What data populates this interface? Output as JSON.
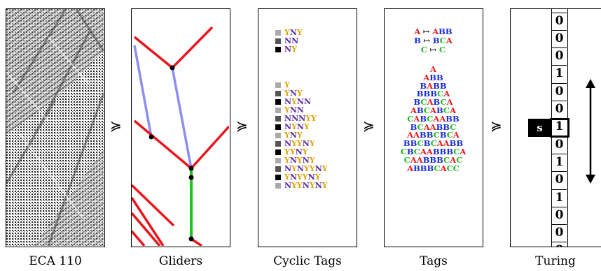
{
  "captions": {
    "eca": "ECA 110",
    "gliders": "Gliders",
    "cyclic": "Cyclic Tags",
    "tags": "Tags",
    "turing": "Turing"
  },
  "succ_symbol": "≽",
  "cyclic_tags": {
    "rules": [
      {
        "shade": "#aaaaaa",
        "tokens": [
          "Y",
          "N",
          "Y"
        ]
      },
      {
        "shade": "#555555",
        "tokens": [
          "N",
          "N"
        ]
      },
      {
        "shade": "#000000",
        "tokens": [
          "N",
          "Y"
        ]
      }
    ],
    "trace": [
      {
        "shade": "#aaaaaa",
        "word": "Y"
      },
      {
        "shade": "#555555",
        "word": "YNY"
      },
      {
        "shade": "#000000",
        "word": "NYNN"
      },
      {
        "shade": "#aaaaaa",
        "word": "YNN"
      },
      {
        "shade": "#555555",
        "word": "NNNYY"
      },
      {
        "shade": "#000000",
        "word": "NYNY"
      },
      {
        "shade": "#aaaaaa",
        "word": "YNY"
      },
      {
        "shade": "#555555",
        "word": "NYYNY"
      },
      {
        "shade": "#000000",
        "word": "YYNY"
      },
      {
        "shade": "#aaaaaa",
        "word": "YNYNY"
      },
      {
        "shade": "#555555",
        "word": "NYNYYNY"
      },
      {
        "shade": "#000000",
        "word": "YNYYNY"
      },
      {
        "shade": "#aaaaaa",
        "word": "NYYNYNY"
      }
    ]
  },
  "tags": {
    "arrow": "↦",
    "rules": [
      {
        "lhs": "A",
        "rhs": "ABB"
      },
      {
        "lhs": "B",
        "rhs": "BCA"
      },
      {
        "lhs": "C",
        "rhs": "C"
      }
    ],
    "trace": [
      "A",
      "ABB",
      "BABB",
      "BBBCA",
      "BCABCA",
      "ABCABCA",
      "CABCAABB",
      "BCAABBC",
      "AABBCBCA",
      "BBCBCAABB",
      "CBCAABBBCA",
      "CAABBBCAC",
      "ABBBCACC"
    ]
  },
  "turing": {
    "head_label": "s",
    "cells": [
      "0",
      "0",
      "0",
      "1",
      "0",
      "0",
      "1",
      "0",
      "1",
      "0",
      "1",
      "0",
      "0"
    ],
    "head_index": 6
  }
}
